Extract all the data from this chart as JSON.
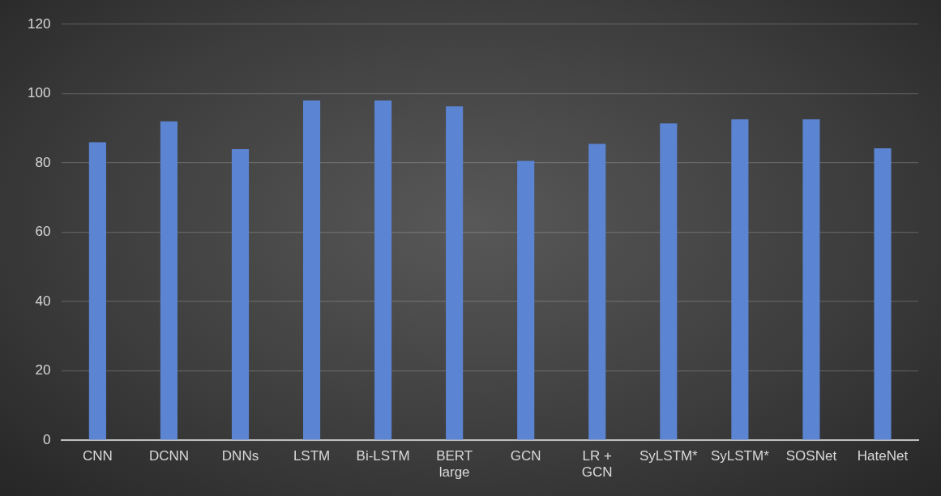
{
  "chart_data": {
    "type": "bar",
    "categories": [
      "CNN",
      "DCNN",
      "DNNs",
      "LSTM",
      "Bi-LSTM",
      "BERT large",
      "GCN",
      "LR + GCN",
      "SyLSTM*",
      "SyLSTM*",
      "SOSNet",
      "HateNet"
    ],
    "values": [
      86,
      92,
      84,
      98,
      98,
      96.3,
      80.6,
      85.5,
      91.4,
      92.6,
      92.6,
      84.2
    ],
    "color": "#5b84d2",
    "ylim": [
      0,
      120
    ],
    "yticks": [
      0,
      20,
      40,
      60,
      80,
      100,
      120
    ],
    "grid": "y",
    "legend": false
  }
}
